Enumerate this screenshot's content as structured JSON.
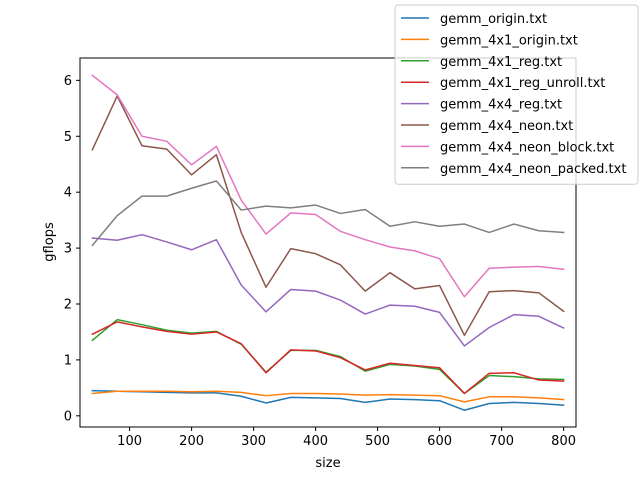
{
  "chart_data": {
    "type": "line",
    "title": "",
    "xlabel": "size",
    "ylabel": "gflops",
    "xlim": [
      20,
      820
    ],
    "ylim": [
      -0.2,
      6.4
    ],
    "xticks": [
      "100",
      "200",
      "300",
      "400",
      "500",
      "600",
      "700",
      "800"
    ],
    "xtick_values": [
      100,
      200,
      300,
      400,
      500,
      600,
      700,
      800
    ],
    "yticks": [
      "0",
      "1",
      "2",
      "3",
      "4",
      "5",
      "6"
    ],
    "ytick_values": [
      0,
      1,
      2,
      3,
      4,
      5,
      6
    ],
    "grid": false,
    "legend_position": "top-right",
    "x": [
      40,
      80,
      120,
      160,
      200,
      240,
      280,
      320,
      360,
      400,
      440,
      480,
      520,
      560,
      600,
      640,
      680,
      720,
      760,
      800
    ],
    "series": [
      {
        "name": "gemm_origin.txt",
        "color": "#1f77b4",
        "values": [
          0.45,
          0.44,
          0.43,
          0.42,
          0.41,
          0.41,
          0.35,
          0.23,
          0.33,
          0.32,
          0.31,
          0.24,
          0.3,
          0.29,
          0.27,
          0.1,
          0.22,
          0.24,
          0.22,
          0.19
        ]
      },
      {
        "name": "gemm_4x1_origin.txt",
        "color": "#ff7f0e",
        "values": [
          0.4,
          0.44,
          0.44,
          0.44,
          0.43,
          0.44,
          0.42,
          0.36,
          0.4,
          0.4,
          0.39,
          0.37,
          0.38,
          0.37,
          0.36,
          0.25,
          0.34,
          0.34,
          0.32,
          0.29
        ]
      },
      {
        "name": "gemm_4x1_reg.txt",
        "color": "#2ca02c",
        "values": [
          1.35,
          1.72,
          1.63,
          1.53,
          1.48,
          1.51,
          1.28,
          0.78,
          1.17,
          1.17,
          1.06,
          0.8,
          0.92,
          0.89,
          0.83,
          0.4,
          0.72,
          0.7,
          0.66,
          0.65
        ]
      },
      {
        "name": "gemm_4x1_reg_unroll.txt",
        "color": "#d62728",
        "values": [
          1.46,
          1.68,
          1.59,
          1.51,
          1.46,
          1.5,
          1.29,
          0.77,
          1.18,
          1.16,
          1.04,
          0.82,
          0.94,
          0.9,
          0.86,
          0.4,
          0.76,
          0.77,
          0.64,
          0.62
        ]
      },
      {
        "name": "gemm_4x4_reg.txt",
        "color": "#9467bd",
        "values": [
          3.18,
          3.14,
          3.24,
          3.11,
          2.97,
          3.15,
          2.34,
          1.86,
          2.26,
          2.23,
          2.07,
          1.82,
          1.98,
          1.96,
          1.85,
          1.25,
          1.58,
          1.81,
          1.78,
          1.57
        ]
      },
      {
        "name": "gemm_4x4_neon.txt",
        "color": "#8c564b",
        "values": [
          4.76,
          5.72,
          4.83,
          4.77,
          4.31,
          4.67,
          3.28,
          2.3,
          2.99,
          2.9,
          2.7,
          2.23,
          2.56,
          2.27,
          2.33,
          1.44,
          2.22,
          2.24,
          2.2,
          1.87
        ]
      },
      {
        "name": "gemm_4x4_neon_block.txt",
        "color": "#e377c2",
        "values": [
          6.09,
          5.74,
          5.0,
          4.91,
          4.49,
          4.82,
          3.86,
          3.25,
          3.63,
          3.6,
          3.3,
          3.15,
          3.02,
          2.95,
          2.81,
          2.13,
          2.64,
          2.66,
          2.67,
          2.62
        ]
      },
      {
        "name": "gemm_4x4_neon_packed.txt",
        "color": "#7f7f7f",
        "values": [
          3.05,
          3.58,
          3.93,
          3.93,
          4.07,
          4.2,
          3.68,
          3.75,
          3.72,
          3.77,
          3.62,
          3.69,
          3.39,
          3.47,
          3.39,
          3.43,
          3.28,
          3.43,
          3.31,
          3.28
        ]
      }
    ]
  }
}
